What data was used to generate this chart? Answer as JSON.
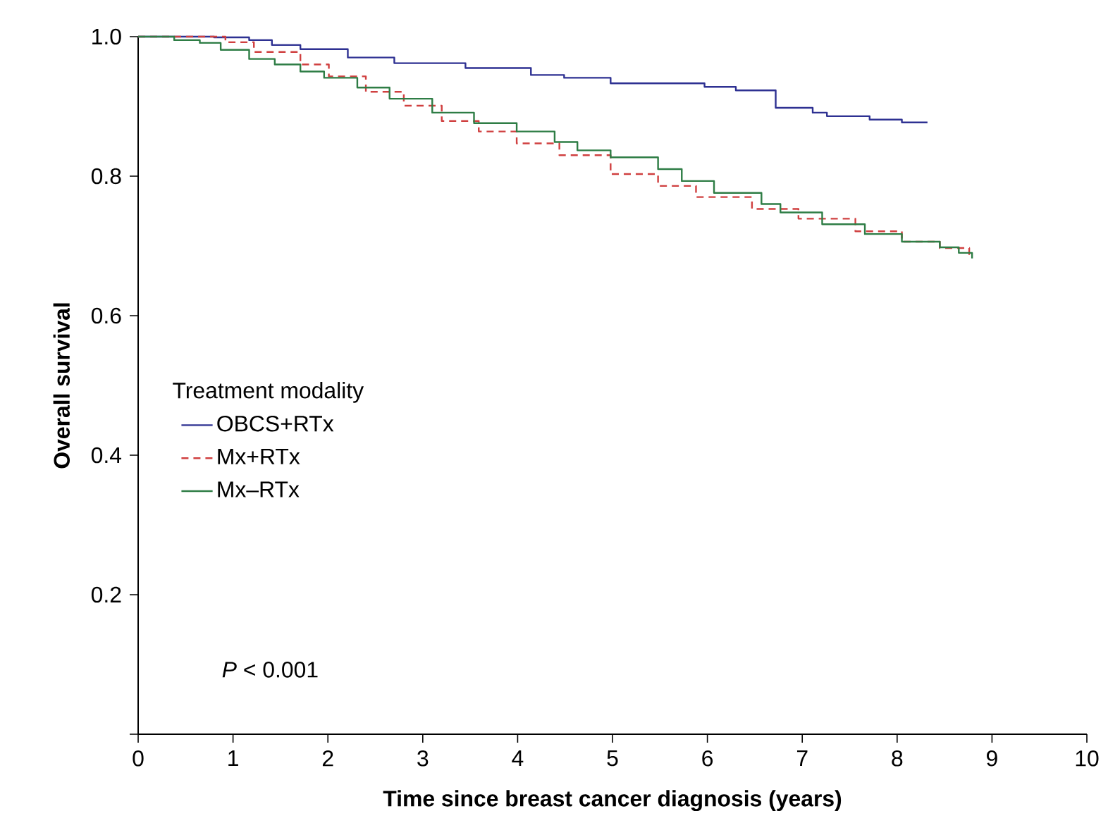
{
  "chart_data": {
    "type": "step",
    "xlabel": "Time since breast cancer diagnosis (years)",
    "ylabel": "Overall survival",
    "legend_title": "Treatment modality",
    "legend": "left",
    "grid": false,
    "marker": "none",
    "xlim": [
      0,
      10
    ],
    "ylim": [
      0,
      1.0
    ],
    "xticks": [
      0,
      1,
      2,
      3,
      4,
      5,
      6,
      7,
      8,
      9,
      10
    ],
    "yticks": [
      {
        "value": 0,
        "label": null
      },
      0.2,
      0.4,
      0.6,
      0.8,
      {
        "value": 1.0,
        "label": "1.0"
      }
    ],
    "annotations": [
      "*P* < 0.001"
    ],
    "series": [
      {
        "name": "OBCS+RTx",
        "color": "#2e3192",
        "line_style": "solid",
        "x": [
          0,
          0.8,
          1.17,
          1.41,
          1.71,
          2.21,
          2.7,
          3.45,
          4.14,
          4.49,
          4.98,
          5.97,
          6.3,
          6.72,
          7.11,
          7.26,
          7.71,
          8.05,
          8.32
        ],
        "values": [
          1.0,
          0.999,
          0.995,
          0.988,
          0.982,
          0.97,
          0.962,
          0.955,
          0.945,
          0.941,
          0.933,
          0.928,
          0.923,
          0.898,
          0.891,
          0.886,
          0.881,
          0.877,
          0.877
        ]
      },
      {
        "name": "Mx+RTx",
        "color": "#d04040",
        "line_style": "dashed",
        "x": [
          0,
          0.75,
          0.92,
          1.22,
          1.71,
          2.01,
          2.4,
          2.8,
          3.2,
          3.59,
          3.99,
          4.44,
          4.98,
          5.48,
          5.88,
          6.47,
          6.96,
          7.56,
          8.05,
          8.45,
          8.76
        ],
        "values": [
          1.0,
          1.0,
          0.992,
          0.978,
          0.96,
          0.943,
          0.921,
          0.901,
          0.879,
          0.864,
          0.847,
          0.83,
          0.803,
          0.786,
          0.77,
          0.753,
          0.739,
          0.721,
          0.706,
          0.697,
          0.687
        ]
      },
      {
        "name": "Mx–RTx",
        "color": "#2e7d45",
        "line_style": "solid",
        "x": [
          0,
          0.38,
          0.65,
          0.87,
          1.17,
          1.44,
          1.71,
          1.96,
          2.31,
          2.65,
          3.1,
          3.54,
          3.99,
          4.39,
          4.63,
          4.98,
          5.48,
          5.73,
          6.07,
          6.57,
          6.77,
          7.21,
          7.66,
          8.05,
          8.45,
          8.65,
          8.79
        ],
        "values": [
          1.0,
          0.995,
          0.991,
          0.981,
          0.968,
          0.96,
          0.95,
          0.941,
          0.927,
          0.911,
          0.891,
          0.876,
          0.864,
          0.849,
          0.837,
          0.827,
          0.81,
          0.793,
          0.776,
          0.76,
          0.748,
          0.731,
          0.717,
          0.706,
          0.698,
          0.69,
          0.682
        ]
      }
    ]
  }
}
